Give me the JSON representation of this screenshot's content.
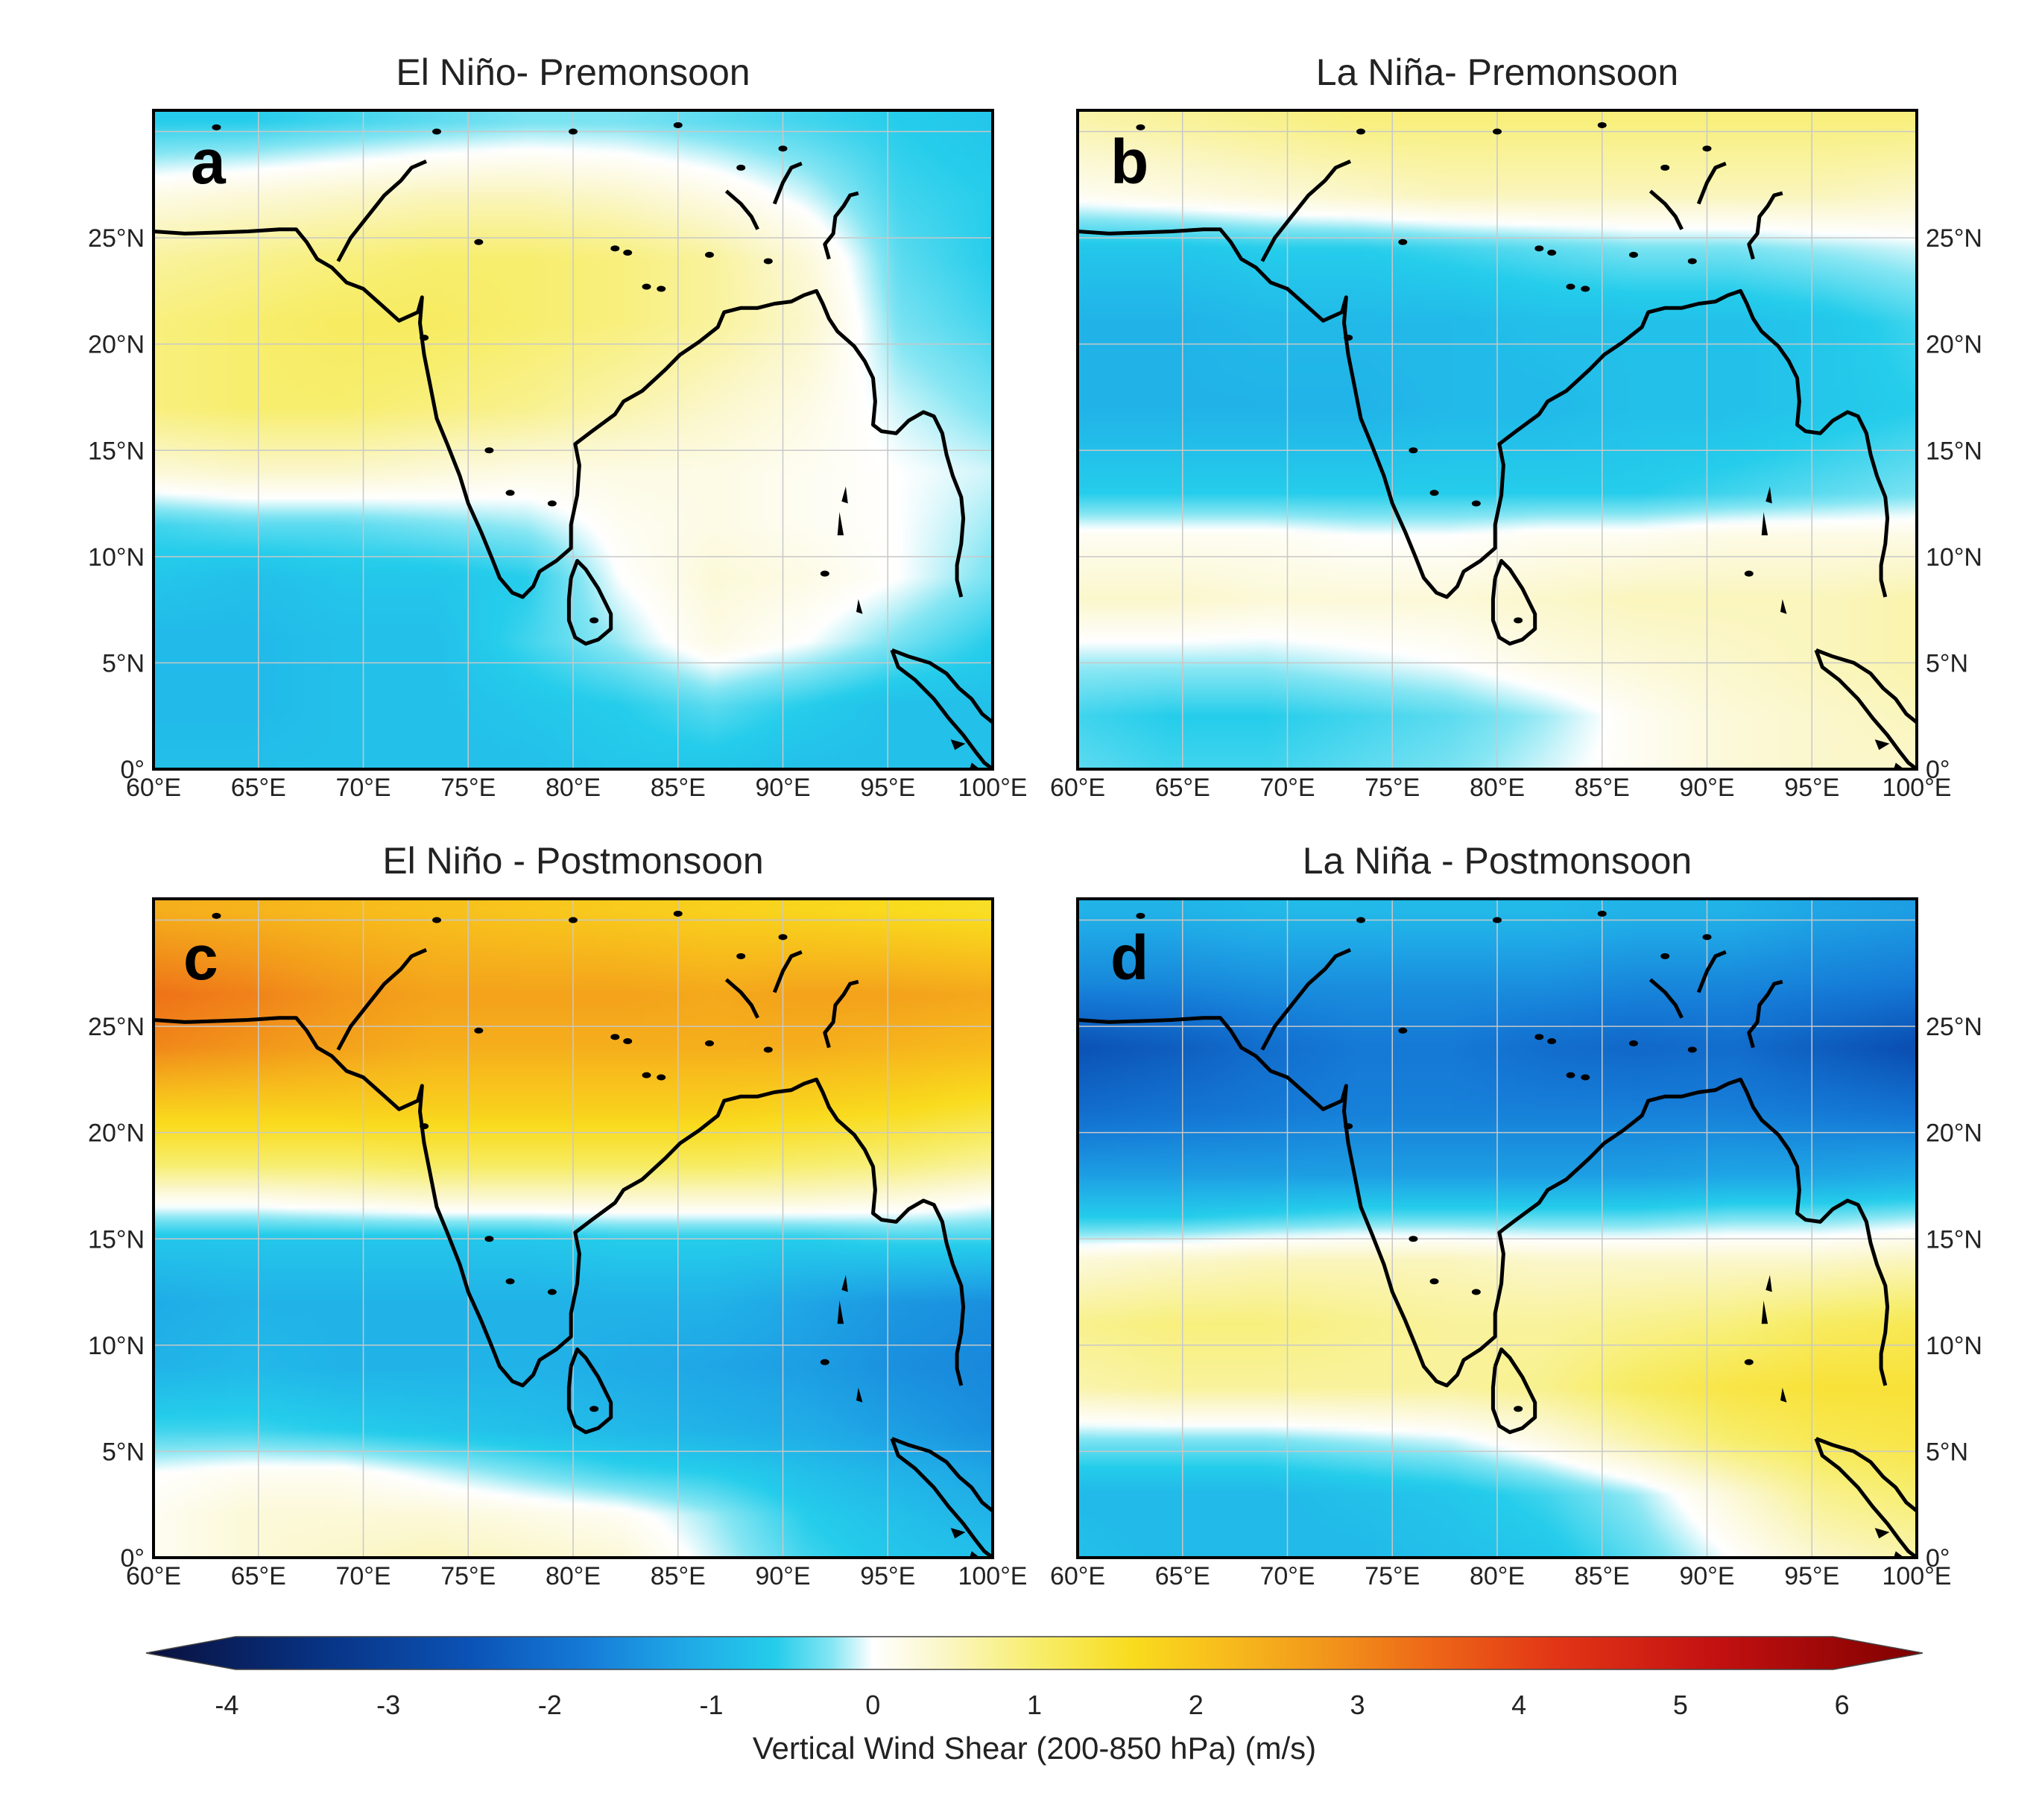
{
  "figure": {
    "lon_ticks": [
      "60°E",
      "65°E",
      "70°E",
      "75°E",
      "80°E",
      "85°E",
      "90°E",
      "95°E",
      "100°E"
    ],
    "lat_ticks": [
      "0°",
      "5°N",
      "10°N",
      "15°N",
      "20°N",
      "25°N"
    ],
    "lon_range": [
      60,
      100
    ],
    "lat_range": [
      0,
      31
    ]
  },
  "panels": [
    {
      "id": "a",
      "title": "El Niño- Premonsoon",
      "label": "a",
      "lat_axis_side": "left",
      "field": [
        [
          30.5,
          [
            -0.6,
            -0.6,
            -0.5,
            -0.4,
            -0.3,
            -0.3,
            -0.4,
            -0.5,
            -0.6,
            -0.7
          ]
        ],
        [
          27,
          [
            0.2,
            0.3,
            0.4,
            0.5,
            0.5,
            0.4,
            0.2,
            -0.1,
            -0.5,
            -0.6
          ]
        ],
        [
          24,
          [
            0.7,
            0.8,
            0.9,
            1.0,
            1.0,
            0.9,
            0.7,
            0.3,
            -0.4,
            -0.6
          ]
        ],
        [
          21,
          [
            0.9,
            1.0,
            1.1,
            1.1,
            1.0,
            0.9,
            0.7,
            0.4,
            -0.3,
            -0.5
          ]
        ],
        [
          17,
          [
            0.9,
            1.0,
            1.0,
            0.9,
            0.8,
            0.6,
            0.4,
            0.2,
            -0.1,
            -0.3
          ]
        ],
        [
          14,
          [
            0.3,
            0.4,
            0.4,
            0.3,
            0.2,
            0.2,
            0.2,
            0.1,
            0.0,
            -0.1
          ]
        ],
        [
          11.5,
          [
            -0.5,
            -0.4,
            -0.4,
            -0.3,
            -0.2,
            0.1,
            0.2,
            0.1,
            0.0,
            -0.2
          ]
        ],
        [
          9,
          [
            -0.7,
            -0.8,
            -0.7,
            -0.7,
            -0.6,
            0.0,
            0.3,
            0.2,
            0.0,
            -0.3
          ]
        ],
        [
          6,
          [
            -0.9,
            -0.9,
            -0.8,
            -0.8,
            -0.5,
            -0.2,
            0.2,
            0.0,
            -0.3,
            -0.6
          ]
        ],
        [
          3,
          [
            -0.9,
            -0.9,
            -0.8,
            -0.8,
            -0.7,
            -0.6,
            -0.4,
            -0.6,
            -0.8,
            -0.8
          ]
        ],
        [
          0,
          [
            -0.8,
            -0.8,
            -0.8,
            -0.8,
            -0.8,
            -0.7,
            -0.7,
            -0.8,
            -0.8,
            -0.8
          ]
        ]
      ]
    },
    {
      "id": "b",
      "title": "La Niña- Premonsoon",
      "label": "b",
      "lat_axis_side": "right",
      "field": [
        [
          30.5,
          [
            0.6,
            0.7,
            0.8,
            0.9,
            0.9,
            0.9,
            0.9,
            0.9,
            0.9,
            0.9
          ]
        ],
        [
          27,
          [
            0.1,
            0.2,
            0.3,
            0.4,
            0.5,
            0.5,
            0.5,
            0.5,
            0.5,
            0.4
          ]
        ],
        [
          24.5,
          [
            -0.7,
            -0.7,
            -0.6,
            -0.6,
            -0.5,
            -0.4,
            -0.3,
            -0.3,
            -0.2,
            -0.1
          ]
        ],
        [
          21,
          [
            -1.0,
            -1.0,
            -0.9,
            -0.9,
            -0.9,
            -0.8,
            -0.8,
            -0.8,
            -0.7,
            -0.5
          ]
        ],
        [
          17,
          [
            -1.0,
            -1.0,
            -1.0,
            -1.0,
            -0.9,
            -0.9,
            -0.8,
            -0.8,
            -0.7,
            -0.6
          ]
        ],
        [
          13,
          [
            -0.6,
            -0.6,
            -0.6,
            -0.6,
            -0.6,
            -0.6,
            -0.6,
            -0.5,
            -0.4,
            -0.3
          ]
        ],
        [
          11,
          [
            0.1,
            0.1,
            0.1,
            0.0,
            0.0,
            0.1,
            0.1,
            0.2,
            0.2,
            0.2
          ]
        ],
        [
          8,
          [
            0.4,
            0.4,
            0.3,
            0.3,
            0.3,
            0.4,
            0.5,
            0.5,
            0.5,
            0.6
          ]
        ],
        [
          5,
          [
            -0.2,
            -0.2,
            -0.2,
            -0.1,
            0.0,
            0.2,
            0.3,
            0.4,
            0.5,
            0.6
          ]
        ],
        [
          2.5,
          [
            -0.5,
            -0.6,
            -0.6,
            -0.5,
            -0.4,
            -0.2,
            0.1,
            0.3,
            0.4,
            0.5
          ]
        ],
        [
          0,
          [
            -0.4,
            -0.5,
            -0.5,
            -0.4,
            -0.3,
            -0.1,
            0.1,
            0.3,
            0.4,
            0.4
          ]
        ]
      ]
    },
    {
      "id": "c",
      "title": "El Niño - Postmonsoon",
      "label": "c",
      "lat_axis_side": "left",
      "field": [
        [
          30.5,
          [
            2.4,
            2.3,
            2.2,
            2.1,
            2.0,
            1.9,
            1.8,
            1.7,
            1.6,
            1.5
          ]
        ],
        [
          26.5,
          [
            3.3,
            3.1,
            2.8,
            2.6,
            2.6,
            2.6,
            2.5,
            2.6,
            2.6,
            2.5
          ]
        ],
        [
          24,
          [
            3.0,
            2.8,
            2.6,
            2.4,
            2.4,
            2.4,
            2.4,
            2.4,
            2.3,
            2.2
          ]
        ],
        [
          21,
          [
            1.8,
            1.8,
            1.8,
            1.8,
            1.8,
            1.8,
            1.8,
            1.7,
            1.6,
            1.4
          ]
        ],
        [
          18.5,
          [
            1.0,
            1.0,
            1.0,
            1.1,
            1.1,
            1.1,
            1.1,
            1.0,
            0.9,
            0.7
          ]
        ],
        [
          17,
          [
            0.2,
            0.2,
            0.3,
            0.4,
            0.4,
            0.4,
            0.4,
            0.4,
            0.3,
            0.1
          ]
        ],
        [
          15,
          [
            -0.7,
            -0.7,
            -0.7,
            -0.7,
            -0.7,
            -0.6,
            -0.6,
            -0.6,
            -0.5,
            -0.5
          ]
        ],
        [
          12,
          [
            -1.1,
            -1.0,
            -1.0,
            -1.0,
            -1.0,
            -1.0,
            -1.0,
            -1.2,
            -1.4,
            -1.5
          ]
        ],
        [
          9,
          [
            -1.0,
            -0.9,
            -1.0,
            -1.0,
            -1.0,
            -1.1,
            -1.2,
            -1.3,
            -1.5,
            -1.6
          ]
        ],
        [
          6,
          [
            -0.5,
            -0.5,
            -0.6,
            -0.7,
            -0.8,
            -0.9,
            -1.0,
            -1.1,
            -1.3,
            -1.5
          ]
        ],
        [
          4,
          [
            0.0,
            0.1,
            0.1,
            -0.1,
            -0.3,
            -0.5,
            -0.6,
            -0.8,
            -1.0,
            -1.2
          ]
        ],
        [
          2,
          [
            0.1,
            0.3,
            0.3,
            0.3,
            0.2,
            0.1,
            -0.2,
            -0.6,
            -0.8,
            -1.0
          ]
        ],
        [
          0,
          [
            0.1,
            0.3,
            0.4,
            0.5,
            0.4,
            0.3,
            -0.1,
            -0.5,
            -0.7,
            -0.8
          ]
        ]
      ]
    },
    {
      "id": "d",
      "title": "La Niña - Postmonsoon",
      "label": "d",
      "lat_axis_side": "right",
      "field": [
        [
          30.5,
          [
            -1.0,
            -1.0,
            -0.9,
            -0.9,
            -0.9,
            -0.9,
            -1.0,
            -1.0,
            -1.2,
            -1.3
          ]
        ],
        [
          27,
          [
            -1.6,
            -1.6,
            -1.5,
            -1.5,
            -1.5,
            -1.5,
            -1.6,
            -1.6,
            -1.7,
            -1.8
          ]
        ],
        [
          24,
          [
            -2.5,
            -2.3,
            -2.0,
            -1.8,
            -1.8,
            -2.0,
            -2.1,
            -2.0,
            -2.3,
            -2.6
          ]
        ],
        [
          21,
          [
            -2.0,
            -1.9,
            -1.8,
            -1.7,
            -1.7,
            -1.7,
            -1.7,
            -1.7,
            -1.8,
            -1.9
          ]
        ],
        [
          18,
          [
            -1.3,
            -1.3,
            -1.3,
            -1.3,
            -1.3,
            -1.3,
            -1.3,
            -1.2,
            -1.2,
            -1.1
          ]
        ],
        [
          16,
          [
            -0.6,
            -0.6,
            -0.5,
            -0.4,
            -0.4,
            -0.4,
            -0.4,
            -0.3,
            -0.3,
            -0.2
          ]
        ],
        [
          14,
          [
            0.3,
            0.4,
            0.5,
            0.5,
            0.5,
            0.4,
            0.4,
            0.4,
            0.4,
            0.5
          ]
        ],
        [
          11,
          [
            0.8,
            0.9,
            0.9,
            0.8,
            0.7,
            0.7,
            0.8,
            0.9,
            1.1,
            1.2
          ]
        ],
        [
          8,
          [
            0.6,
            0.7,
            0.7,
            0.7,
            0.7,
            0.8,
            1.1,
            1.3,
            1.4,
            1.4
          ]
        ],
        [
          5.5,
          [
            -0.3,
            -0.3,
            -0.3,
            -0.2,
            -0.1,
            0.2,
            0.6,
            1.0,
            1.2,
            1.3
          ]
        ],
        [
          3,
          [
            -0.9,
            -0.9,
            -0.9,
            -0.8,
            -0.7,
            -0.5,
            -0.2,
            0.3,
            0.8,
            1.0
          ]
        ],
        [
          0,
          [
            -0.8,
            -0.9,
            -0.9,
            -0.9,
            -0.8,
            -0.7,
            -0.4,
            0.0,
            0.4,
            0.6
          ]
        ]
      ]
    }
  ],
  "colorbar": {
    "ticks": [
      "-4",
      "-3",
      "-2",
      "-1",
      "0",
      "1",
      "2",
      "3",
      "4",
      "5",
      "6"
    ],
    "title": "Vertical Wind Shear (200-850 hPa) (m/s)",
    "range": [
      -4.5,
      6.5
    ]
  },
  "colorscale": [
    [
      -4.5,
      "#0a0f3c"
    ],
    [
      -3.5,
      "#08307e"
    ],
    [
      -2.5,
      "#0b52b5"
    ],
    [
      -1.8,
      "#1579d6"
    ],
    [
      -1.2,
      "#1fa6e6"
    ],
    [
      -0.6,
      "#25cdeb"
    ],
    [
      -0.25,
      "#86e6f3"
    ],
    [
      0.0,
      "#ffffff"
    ],
    [
      0.4,
      "#fbf7cc"
    ],
    [
      1.0,
      "#f7ee6e"
    ],
    [
      1.6,
      "#f9dc1e"
    ],
    [
      2.2,
      "#f7bb1c"
    ],
    [
      2.8,
      "#f2961b"
    ],
    [
      3.4,
      "#ee6b17"
    ],
    [
      4.2,
      "#e23716"
    ],
    [
      5.2,
      "#c41111"
    ],
    [
      6.5,
      "#7e0000"
    ]
  ]
}
